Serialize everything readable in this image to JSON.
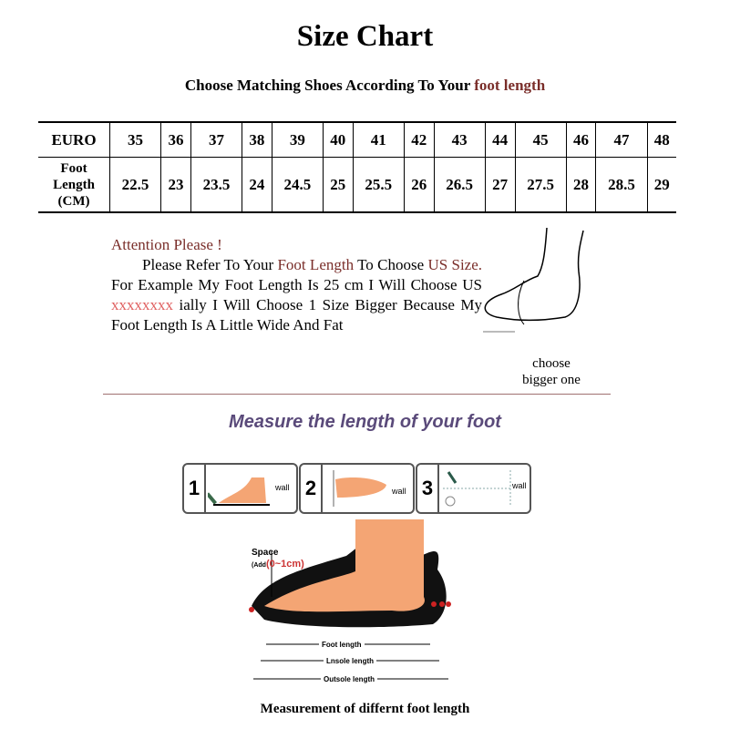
{
  "title": "Size Chart",
  "subtitle": {
    "prefix": "Choose Matching Shoes According To Your ",
    "highlight": "foot length"
  },
  "table": {
    "row_euro": {
      "label": "EURO",
      "values": [
        "35",
        "36",
        "37",
        "38",
        "39",
        "40",
        "41",
        "42",
        "43",
        "44",
        "45",
        "46",
        "47",
        "48"
      ]
    },
    "row_foot": {
      "label": [
        "Foot",
        "Length",
        "(CM)"
      ],
      "values": [
        "22.5",
        "23",
        "23.5",
        "24",
        "24.5",
        "25",
        "25.5",
        "26",
        "26.5",
        "27",
        "27.5",
        "28",
        "28.5",
        "29"
      ]
    }
  },
  "attention": {
    "heading": "Attention Please !",
    "t1": "Please Refer To Your ",
    "h1": "Foot Length",
    "t2": " To Choose ",
    "h2": "US Size.",
    "t3": " For Example My Foot Length Is 25 cm I Will Choose US ",
    "h3": "xxxxxxxx",
    "t4": " ially I Will Choose 1 Size Bigger Because My Foot Length Is A Little Wide And Fat"
  },
  "choose_note": [
    "choose",
    "bigger one"
  ],
  "measure_heading": "Measure the length of your foot",
  "steps": [
    {
      "num": "1",
      "wall": "wall"
    },
    {
      "num": "2",
      "wall": "wall"
    },
    {
      "num": "3",
      "wall": "wall"
    }
  ],
  "diagram": {
    "space": "Space",
    "add_prefix": "(Add",
    "add_value": "(0~1cm)",
    "foot_length": "Foot length",
    "insole_length": "Lnsole length",
    "outsole_length": "Outsole length"
  },
  "caption": "Measurement of differnt foot length",
  "colors": {
    "accent": "#7a2e2a",
    "heading": "#5a4a7a",
    "skin": "#f4a574"
  }
}
